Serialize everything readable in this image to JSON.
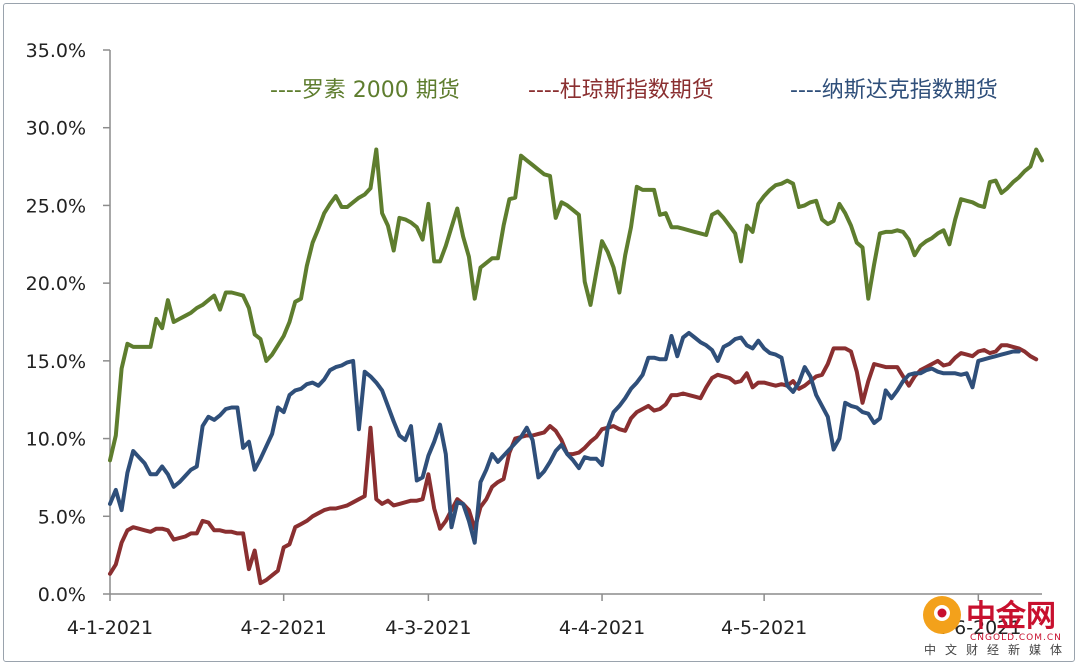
{
  "chart_data": {
    "type": "line",
    "title": "",
    "xlabel": "",
    "ylabel": "",
    "ylim": [
      0,
      0.35
    ],
    "y_ticks": [
      "0.0%",
      "5.0%",
      "10.0%",
      "15.0%",
      "20.0%",
      "25.0%",
      "30.0%",
      "35.0%"
    ],
    "x_ticks": [
      "4-1-2021",
      "4-2-2021",
      "4-3-2021",
      "4-4-2021",
      "4-5-2021",
      "4-6-2021"
    ],
    "x_tick_index": [
      0,
      30,
      55,
      85,
      113,
      150
    ],
    "grid": false,
    "legend": "top",
    "series": [
      {
        "name": "----罗素 2000 期货",
        "color": "#5e7d2e",
        "values": [
          0.086,
          0.102,
          0.145,
          0.161,
          0.159,
          0.159,
          0.159,
          0.159,
          0.177,
          0.171,
          0.189,
          0.175,
          0.177,
          0.179,
          0.181,
          0.184,
          0.186,
          0.189,
          0.192,
          0.183,
          0.194,
          0.194,
          0.193,
          0.192,
          0.184,
          0.167,
          0.164,
          0.15,
          0.154,
          0.16,
          0.166,
          0.175,
          0.188,
          0.19,
          0.211,
          0.226,
          0.235,
          0.245,
          0.251,
          0.256,
          0.249,
          0.249,
          0.252,
          0.255,
          0.257,
          0.261,
          0.286,
          0.245,
          0.237,
          0.221,
          0.242,
          0.241,
          0.239,
          0.236,
          0.228,
          0.251,
          0.214,
          0.214,
          0.224,
          0.236,
          0.248,
          0.23,
          0.217,
          0.19,
          0.21,
          0.213,
          0.216,
          0.216,
          0.237,
          0.254,
          0.255,
          0.282,
          0.279,
          0.276,
          0.273,
          0.27,
          0.269,
          0.242,
          0.252,
          0.25,
          0.247,
          0.244,
          0.201,
          0.186,
          0.207,
          0.227,
          0.22,
          0.21,
          0.194,
          0.218,
          0.236,
          0.262,
          0.26,
          0.26,
          0.26,
          0.244,
          0.245,
          0.236,
          0.236,
          0.235,
          0.234,
          0.233,
          0.232,
          0.231,
          0.244,
          0.246,
          0.242,
          0.237,
          0.232,
          0.214,
          0.237,
          0.233,
          0.251,
          0.256,
          0.26,
          0.263,
          0.264,
          0.266,
          0.264,
          0.249,
          0.25,
          0.252,
          0.253,
          0.241,
          0.238,
          0.24,
          0.251,
          0.245,
          0.237,
          0.226,
          0.223,
          0.19,
          0.212,
          0.232,
          0.233,
          0.233,
          0.234,
          0.233,
          0.228,
          0.218,
          0.224,
          0.227,
          0.229,
          0.232,
          0.234,
          0.225,
          0.241,
          0.254,
          0.253,
          0.252,
          0.25,
          0.249,
          0.265,
          0.266,
          0.258,
          0.261,
          0.265,
          0.268,
          0.272,
          0.275,
          0.286,
          0.279
        ]
      },
      {
        "name": "----杜琼斯指数期货",
        "color": "#8a2f30",
        "values": [
          0.013,
          0.019,
          0.033,
          0.041,
          0.043,
          0.042,
          0.041,
          0.04,
          0.042,
          0.042,
          0.041,
          0.035,
          0.036,
          0.037,
          0.039,
          0.039,
          0.047,
          0.046,
          0.041,
          0.041,
          0.04,
          0.04,
          0.039,
          0.039,
          0.016,
          0.028,
          0.007,
          0.009,
          0.012,
          0.015,
          0.03,
          0.032,
          0.043,
          0.045,
          0.047,
          0.05,
          0.052,
          0.054,
          0.055,
          0.055,
          0.056,
          0.057,
          0.059,
          0.061,
          0.063,
          0.107,
          0.061,
          0.058,
          0.06,
          0.057,
          0.058,
          0.059,
          0.06,
          0.06,
          0.061,
          0.077,
          0.055,
          0.042,
          0.047,
          0.054,
          0.061,
          0.058,
          0.054,
          0.042,
          0.056,
          0.061,
          0.069,
          0.072,
          0.074,
          0.091,
          0.1,
          0.101,
          0.102,
          0.102,
          0.103,
          0.104,
          0.108,
          0.105,
          0.099,
          0.09,
          0.09,
          0.091,
          0.094,
          0.098,
          0.101,
          0.106,
          0.107,
          0.108,
          0.106,
          0.105,
          0.113,
          0.117,
          0.119,
          0.121,
          0.118,
          0.119,
          0.122,
          0.128,
          0.128,
          0.129,
          0.128,
          0.127,
          0.126,
          0.133,
          0.139,
          0.141,
          0.14,
          0.139,
          0.136,
          0.137,
          0.142,
          0.133,
          0.136,
          0.136,
          0.135,
          0.134,
          0.135,
          0.134,
          0.137,
          0.132,
          0.134,
          0.137,
          0.14,
          0.141,
          0.148,
          0.158,
          0.158,
          0.158,
          0.156,
          0.143,
          0.123,
          0.137,
          0.148,
          0.147,
          0.146,
          0.146,
          0.146,
          0.14,
          0.134,
          0.14,
          0.144,
          0.146,
          0.148,
          0.15,
          0.147,
          0.148,
          0.152,
          0.155,
          0.154,
          0.153,
          0.156,
          0.157,
          0.155,
          0.156,
          0.16,
          0.16,
          0.159,
          0.158,
          0.156,
          0.153,
          0.151
        ]
      },
      {
        "name": "----纳斯达克指数期货",
        "color": "#2f4f7a",
        "values": [
          0.058,
          0.067,
          0.054,
          0.078,
          0.092,
          0.088,
          0.084,
          0.077,
          0.077,
          0.082,
          0.077,
          0.069,
          0.072,
          0.076,
          0.08,
          0.082,
          0.108,
          0.114,
          0.112,
          0.115,
          0.119,
          0.12,
          0.12,
          0.094,
          0.098,
          0.08,
          0.087,
          0.095,
          0.103,
          0.12,
          0.117,
          0.128,
          0.131,
          0.132,
          0.135,
          0.136,
          0.134,
          0.138,
          0.144,
          0.146,
          0.147,
          0.149,
          0.15,
          0.106,
          0.143,
          0.14,
          0.136,
          0.131,
          0.121,
          0.111,
          0.102,
          0.099,
          0.108,
          0.073,
          0.075,
          0.089,
          0.098,
          0.109,
          0.09,
          0.043,
          0.059,
          0.058,
          0.047,
          0.033,
          0.072,
          0.08,
          0.09,
          0.085,
          0.089,
          0.093,
          0.097,
          0.101,
          0.107,
          0.099,
          0.075,
          0.079,
          0.085,
          0.092,
          0.096,
          0.09,
          0.086,
          0.081,
          0.088,
          0.087,
          0.087,
          0.083,
          0.107,
          0.117,
          0.121,
          0.126,
          0.132,
          0.136,
          0.141,
          0.152,
          0.152,
          0.151,
          0.151,
          0.166,
          0.153,
          0.165,
          0.168,
          0.165,
          0.162,
          0.16,
          0.157,
          0.15,
          0.159,
          0.161,
          0.164,
          0.165,
          0.16,
          0.158,
          0.163,
          0.158,
          0.155,
          0.154,
          0.152,
          0.134,
          0.13,
          0.136,
          0.146,
          0.14,
          0.128,
          0.121,
          0.114,
          0.093,
          0.1,
          0.123,
          0.121,
          0.12,
          0.117,
          0.116,
          0.11,
          0.113,
          0.131,
          0.126,
          0.131,
          0.137,
          0.141,
          0.142,
          0.142,
          0.144,
          0.145,
          0.143,
          0.142,
          0.142,
          0.142,
          0.141,
          0.142,
          0.133,
          0.15,
          0.151,
          0.152,
          0.153,
          0.154,
          0.155,
          0.156,
          0.156
        ]
      }
    ]
  },
  "watermark": {
    "brand": "中金网",
    "url": "CNGOLD.COM.CN",
    "tagline": "中文财经新媒体"
  }
}
